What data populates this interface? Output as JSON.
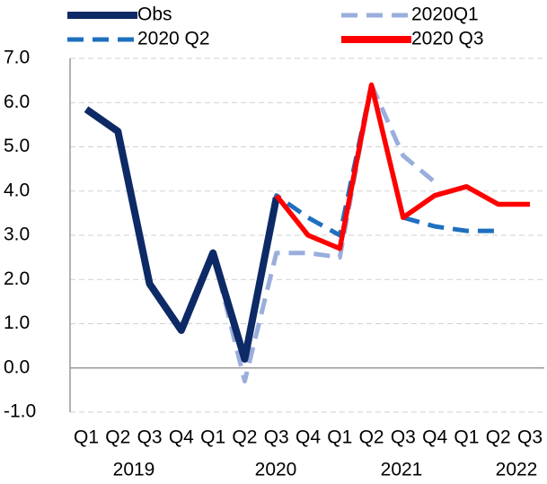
{
  "chart_data": {
    "type": "line",
    "categories": [
      "Q1",
      "Q2",
      "Q3",
      "Q4",
      "Q1",
      "Q2",
      "Q3",
      "Q4",
      "Q1",
      "Q2",
      "Q3",
      "Q4",
      "Q1",
      "Q2",
      "Q3"
    ],
    "year_labels": [
      "2019",
      "2020",
      "2021",
      "2022"
    ],
    "ylim": [
      -1,
      7
    ],
    "yticks": [
      {
        "value": -1,
        "label": "-1.0"
      },
      {
        "value": 0,
        "label": "0.0"
      },
      {
        "value": 1,
        "label": "1.0"
      },
      {
        "value": 2,
        "label": "2.0"
      },
      {
        "value": 3,
        "label": "3.0"
      },
      {
        "value": 4,
        "label": "4.0"
      },
      {
        "value": 5,
        "label": "5.0"
      },
      {
        "value": 6,
        "label": "6.0"
      },
      {
        "value": 7,
        "label": "7.0"
      }
    ],
    "grid": true,
    "series": [
      {
        "name": "Obs",
        "color": "#0d2a66",
        "dashed": false,
        "values": [
          5.85,
          5.35,
          1.9,
          0.85,
          2.6,
          0.2,
          3.85,
          null,
          null,
          null,
          null,
          null,
          null,
          null,
          null
        ]
      },
      {
        "name": "2020Q1",
        "color": "#9aaedc",
        "dashed": true,
        "values": [
          null,
          null,
          null,
          null,
          2.6,
          -0.3,
          2.6,
          2.6,
          2.5,
          6.4,
          4.8,
          4.2,
          null,
          null,
          null
        ]
      },
      {
        "name": "2020 Q2",
        "color": "#1f6fbf",
        "dashed": true,
        "values": [
          null,
          null,
          null,
          null,
          null,
          0.3,
          3.9,
          3.4,
          3.0,
          6.4,
          3.4,
          3.2,
          3.1,
          3.1,
          null
        ]
      },
      {
        "name": "2020 Q3",
        "color": "#ff0000",
        "dashed": false,
        "values": [
          null,
          null,
          null,
          null,
          null,
          null,
          3.9,
          3.0,
          2.7,
          6.4,
          3.4,
          3.9,
          4.1,
          3.7,
          3.7
        ]
      }
    ]
  }
}
